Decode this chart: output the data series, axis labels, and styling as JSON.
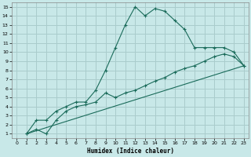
{
  "xlabel": "Humidex (Indice chaleur)",
  "background_color": "#c8e8e8",
  "grid_color": "#aacccc",
  "line_color": "#1a6b5a",
  "xlim": [
    -0.5,
    23.5
  ],
  "ylim": [
    0.5,
    15.5
  ],
  "xticks": [
    0,
    1,
    2,
    3,
    4,
    5,
    6,
    7,
    8,
    9,
    10,
    11,
    12,
    13,
    14,
    15,
    16,
    17,
    18,
    19,
    20,
    21,
    22,
    23
  ],
  "yticks": [
    1,
    2,
    3,
    4,
    5,
    6,
    7,
    8,
    9,
    10,
    11,
    12,
    13,
    14,
    15
  ],
  "curve1_x": [
    1,
    2,
    3,
    4,
    5,
    6,
    7,
    8,
    9,
    10,
    11,
    12,
    13,
    14,
    15,
    16,
    17,
    18,
    19,
    20,
    21,
    22,
    23
  ],
  "curve1_y": [
    1,
    2.5,
    2.5,
    3.5,
    4.0,
    4.5,
    4.5,
    5.8,
    8.0,
    10.5,
    13.0,
    15.0,
    14.0,
    14.8,
    14.5,
    13.5,
    12.5,
    10.5,
    10.5,
    10.5,
    10.5,
    10.0,
    8.5
  ],
  "curve2_x": [
    1,
    2,
    3,
    4,
    5,
    6,
    7,
    8,
    9,
    10,
    11,
    12,
    13,
    14,
    15,
    16,
    17,
    18,
    19,
    20,
    21,
    22,
    23
  ],
  "curve2_y": [
    1,
    1.5,
    1.0,
    2.5,
    3.5,
    4.0,
    4.2,
    4.5,
    5.5,
    5.0,
    5.5,
    5.8,
    6.3,
    6.8,
    7.2,
    7.8,
    8.2,
    8.5,
    9.0,
    9.5,
    9.8,
    9.5,
    8.5
  ],
  "curve3_x": [
    1,
    23
  ],
  "curve3_y": [
    1,
    8.5
  ]
}
